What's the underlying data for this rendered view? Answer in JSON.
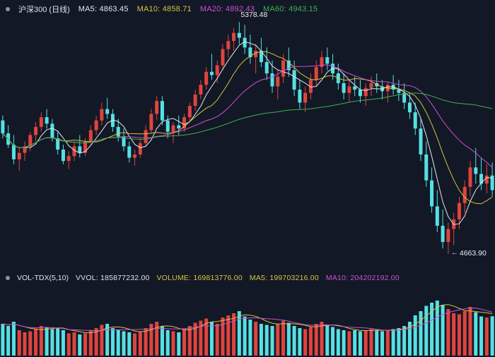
{
  "title_bar": {
    "instrument": "沪深300 (日线)"
  },
  "main_legend": {
    "items": [
      {
        "name": "MA5",
        "text": "MA5: 4863.45",
        "color": "#e4e8ee"
      },
      {
        "name": "MA10",
        "text": "MA10: 4858.71",
        "color": "#d7c43f"
      },
      {
        "name": "MA20",
        "text": "MA20: 4892.43",
        "color": "#cf4fd4"
      },
      {
        "name": "MA60",
        "text": "MA60: 4943.15",
        "color": "#3fb24f"
      }
    ]
  },
  "volume_legend": {
    "indicator": "VOL-TDX(5,10)",
    "items": [
      {
        "name": "VVOL",
        "text": "VVOL: 185877232.00",
        "color": "#dfe3ea"
      },
      {
        "name": "VOLUME",
        "text": "VOLUME: 169813776.00",
        "color": "#d7c43f"
      },
      {
        "name": "MA5",
        "text": "MA5: 199703216.00",
        "color": "#d7c43f"
      },
      {
        "name": "MA10",
        "text": "MA10: 204202192.00",
        "color": "#cf4fd4"
      }
    ]
  },
  "annotations": {
    "high_label": "5378.48",
    "low_label": "4663.90",
    "low_arrow": "←"
  },
  "chart_data": {
    "type": "candlestick",
    "title": "沪深300 (日线)",
    "panes": [
      "price",
      "volume"
    ],
    "colors": {
      "up": "#e0443e",
      "down": "#56e0e3",
      "background": "#121826",
      "ma5": "#e4e8ee",
      "ma10": "#d7c43f",
      "ma20": "#cf4fd4",
      "ma60": "#3fb24f",
      "grid": "rgba(140,160,190,0.07)"
    },
    "price_pane": {
      "ylim": [
        4639,
        5403
      ],
      "annotations": {
        "high": 5378.48,
        "low": 4663.9
      },
      "overlays": [
        {
          "name": "MA5",
          "period": 5,
          "color": "#e4e8ee",
          "last_value": 4863.45
        },
        {
          "name": "MA10",
          "period": 10,
          "color": "#d7c43f",
          "last_value": 4858.71
        },
        {
          "name": "MA20",
          "period": 20,
          "color": "#cf4fd4",
          "last_value": 4892.43
        },
        {
          "name": "MA60",
          "period": 60,
          "color": "#3fb24f",
          "last_value": 4943.15
        }
      ],
      "ohlc": [
        [
          5075,
          5090,
          5020,
          5035
        ],
        [
          5035,
          5060,
          4990,
          5000
        ],
        [
          5000,
          5030,
          4940,
          4955
        ],
        [
          4955,
          4990,
          4920,
          4975
        ],
        [
          4975,
          5010,
          4950,
          4995
        ],
        [
          4995,
          5040,
          4980,
          5030
        ],
        [
          5030,
          5070,
          5010,
          5055
        ],
        [
          5055,
          5100,
          5040,
          5085
        ],
        [
          5085,
          5110,
          5050,
          5065
        ],
        [
          5065,
          5080,
          5010,
          5020
        ],
        [
          5020,
          5040,
          4970,
          4985
        ],
        [
          4985,
          5000,
          4940,
          4950
        ],
        [
          4950,
          4980,
          4925,
          4965
        ],
        [
          4965,
          5010,
          4950,
          4995
        ],
        [
          4995,
          5030,
          4960,
          4975
        ],
        [
          4975,
          5020,
          4965,
          5010
        ],
        [
          5010,
          5060,
          5000,
          5045
        ],
        [
          5045,
          5090,
          5030,
          5075
        ],
        [
          5075,
          5130,
          5060,
          5110
        ],
        [
          5110,
          5145,
          5080,
          5095
        ],
        [
          5095,
          5110,
          5040,
          5055
        ],
        [
          5055,
          5080,
          5010,
          5025
        ],
        [
          5025,
          5050,
          4980,
          4995
        ],
        [
          4995,
          5010,
          4945,
          4960
        ],
        [
          4960,
          4985,
          4935,
          4970
        ],
        [
          4970,
          5020,
          4960,
          5005
        ],
        [
          5005,
          5060,
          4995,
          5045
        ],
        [
          5045,
          5110,
          5035,
          5095
        ],
        [
          5095,
          5150,
          5075,
          5135
        ],
        [
          5135,
          5150,
          5060,
          5075
        ],
        [
          5075,
          5090,
          5020,
          5040
        ],
        [
          5040,
          5070,
          5005,
          5060
        ],
        [
          5060,
          5090,
          5030,
          5050
        ],
        [
          5050,
          5095,
          5040,
          5085
        ],
        [
          5085,
          5130,
          5070,
          5120
        ],
        [
          5120,
          5170,
          5105,
          5155
        ],
        [
          5155,
          5200,
          5140,
          5185
        ],
        [
          5185,
          5240,
          5170,
          5225
        ],
        [
          5225,
          5280,
          5200,
          5215
        ],
        [
          5215,
          5260,
          5190,
          5245
        ],
        [
          5245,
          5310,
          5230,
          5295
        ],
        [
          5295,
          5340,
          5270,
          5320
        ],
        [
          5320,
          5360,
          5290,
          5345
        ],
        [
          5345,
          5378.48,
          5310,
          5330
        ],
        [
          5330,
          5370,
          5280,
          5300
        ],
        [
          5300,
          5340,
          5250,
          5270
        ],
        [
          5270,
          5310,
          5220,
          5290
        ],
        [
          5290,
          5330,
          5240,
          5255
        ],
        [
          5255,
          5300,
          5200,
          5220
        ],
        [
          5220,
          5260,
          5160,
          5180
        ],
        [
          5180,
          5230,
          5140,
          5210
        ],
        [
          5210,
          5280,
          5190,
          5260
        ],
        [
          5260,
          5300,
          5210,
          5230
        ],
        [
          5230,
          5260,
          5150,
          5170
        ],
        [
          5170,
          5200,
          5110,
          5130
        ],
        [
          5130,
          5180,
          5100,
          5160
        ],
        [
          5160,
          5220,
          5140,
          5200
        ],
        [
          5200,
          5260,
          5180,
          5240
        ],
        [
          5240,
          5290,
          5220,
          5270
        ],
        [
          5270,
          5300,
          5230,
          5250
        ],
        [
          5250,
          5280,
          5200,
          5220
        ],
        [
          5220,
          5250,
          5170,
          5190
        ],
        [
          5190,
          5220,
          5140,
          5160
        ],
        [
          5160,
          5200,
          5130,
          5180
        ],
        [
          5180,
          5210,
          5150,
          5170
        ],
        [
          5170,
          5200,
          5130,
          5150
        ],
        [
          5150,
          5190,
          5120,
          5175
        ],
        [
          5175,
          5210,
          5150,
          5190
        ],
        [
          5190,
          5220,
          5160,
          5180
        ],
        [
          5180,
          5200,
          5140,
          5165
        ],
        [
          5165,
          5195,
          5130,
          5185
        ],
        [
          5185,
          5215,
          5155,
          5170
        ],
        [
          5170,
          5200,
          5135,
          5160
        ],
        [
          5160,
          5190,
          5110,
          5130
        ],
        [
          5130,
          5160,
          5080,
          5100
        ],
        [
          5100,
          5130,
          5030,
          5050
        ],
        [
          5050,
          5080,
          4950,
          4970
        ],
        [
          4970,
          5010,
          4870,
          4890
        ],
        [
          4890,
          4930,
          4790,
          4810
        ],
        [
          4810,
          4860,
          4730,
          4750
        ],
        [
          4750,
          4800,
          4680,
          4700
        ],
        [
          4700,
          4760,
          4663.9,
          4740
        ],
        [
          4740,
          4790,
          4690,
          4770
        ],
        [
          4770,
          4840,
          4740,
          4820
        ],
        [
          4820,
          4890,
          4790,
          4870
        ],
        [
          4870,
          4950,
          4840,
          4930
        ],
        [
          4930,
          4990,
          4880,
          4910
        ],
        [
          4910,
          4960,
          4860,
          4880
        ],
        [
          4880,
          4940,
          4850,
          4905
        ],
        [
          4905,
          4945,
          4840,
          4860
        ]
      ]
    },
    "volume_pane": {
      "indicator": "VOL-TDX(5,10)",
      "current_vvol": 185877232.0,
      "current_volume": 169813776.0,
      "overlays": [
        {
          "name": "MA5",
          "period": 5,
          "color": "#d7c43f",
          "last_value": 199703216.0
        },
        {
          "name": "MA10",
          "period": 10,
          "color": "#cf4fd4",
          "last_value": 204202192.0
        }
      ],
      "volumes_millions": [
        150,
        140,
        160,
        120,
        110,
        115,
        125,
        140,
        135,
        125,
        130,
        120,
        105,
        110,
        100,
        105,
        120,
        130,
        145,
        150,
        130,
        120,
        115,
        110,
        105,
        115,
        130,
        150,
        160,
        140,
        120,
        115,
        110,
        125,
        140,
        155,
        165,
        175,
        160,
        150,
        180,
        190,
        200,
        210,
        185,
        170,
        160,
        150,
        145,
        140,
        150,
        165,
        155,
        140,
        130,
        125,
        135,
        150,
        160,
        145,
        135,
        125,
        120,
        115,
        120,
        115,
        120,
        125,
        120,
        115,
        120,
        125,
        130,
        140,
        160,
        190,
        210,
        235,
        250,
        260,
        240,
        220,
        200,
        195,
        210,
        230,
        205,
        185,
        180,
        186
      ]
    }
  }
}
